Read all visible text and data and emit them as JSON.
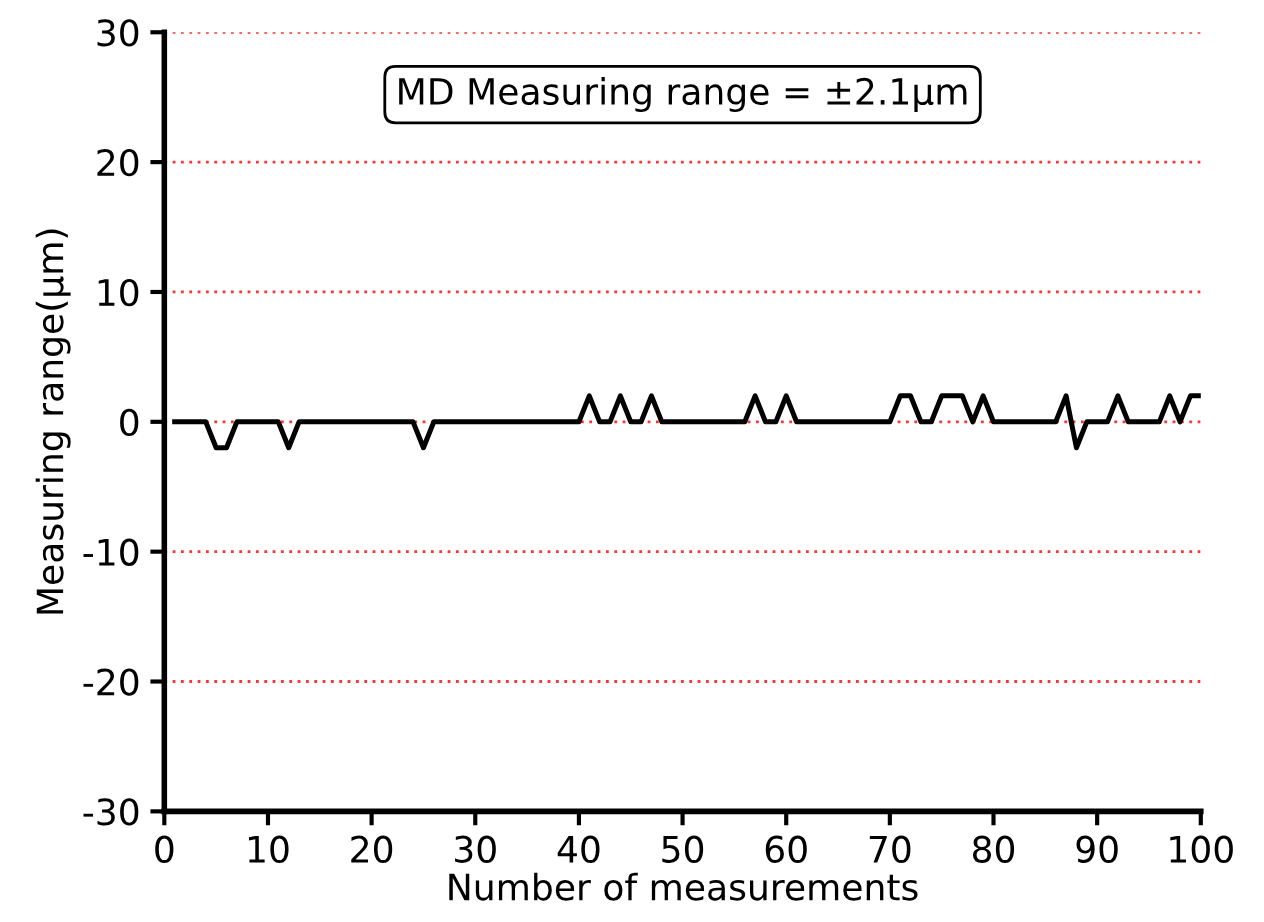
{
  "chart_data": {
    "type": "line",
    "xlabel": "Number of measurements",
    "ylabel": "Measuring range(µm)",
    "annotations": [
      "MD Measuring range = ±2.1µm"
    ],
    "x": [
      1,
      2,
      3,
      4,
      5,
      6,
      7,
      8,
      9,
      10,
      11,
      12,
      13,
      14,
      15,
      16,
      17,
      18,
      19,
      20,
      21,
      22,
      23,
      24,
      25,
      26,
      27,
      28,
      29,
      30,
      31,
      32,
      33,
      34,
      35,
      36,
      37,
      38,
      39,
      40,
      41,
      42,
      43,
      44,
      45,
      46,
      47,
      48,
      49,
      50,
      51,
      52,
      53,
      54,
      55,
      56,
      57,
      58,
      59,
      60,
      61,
      62,
      63,
      64,
      65,
      66,
      67,
      68,
      69,
      70,
      71,
      72,
      73,
      74,
      75,
      76,
      77,
      78,
      79,
      80,
      81,
      82,
      83,
      84,
      85,
      86,
      87,
      88,
      89,
      90,
      91,
      92,
      93,
      94,
      95,
      96,
      97,
      98,
      99,
      100
    ],
    "series": [
      {
        "color": "#000000",
        "values": [
          0,
          0,
          0,
          0,
          -2,
          -2,
          0,
          0,
          0,
          0,
          0,
          -2,
          0,
          0,
          0,
          0,
          0,
          0,
          0,
          0,
          0,
          0,
          0,
          0,
          -2,
          0,
          0,
          0,
          0,
          0,
          0,
          0,
          0,
          0,
          0,
          0,
          0,
          0,
          0,
          0,
          2,
          0,
          0,
          2,
          0,
          0,
          2,
          0,
          0,
          0,
          0,
          0,
          0,
          0,
          0,
          0,
          2,
          0,
          0,
          2,
          0,
          0,
          0,
          0,
          0,
          0,
          0,
          0,
          0,
          0,
          2,
          2,
          0,
          0,
          2,
          2,
          2,
          0,
          2,
          0,
          0,
          0,
          0,
          0,
          0,
          0,
          2,
          -2,
          0,
          0,
          0,
          2,
          0,
          0,
          0,
          0,
          2,
          0,
          2,
          2
        ]
      }
    ],
    "xlim": [
      0,
      100
    ],
    "xticks": [
      0,
      10,
      20,
      30,
      40,
      50,
      60,
      70,
      80,
      90,
      100
    ],
    "ylim": [
      -30,
      30
    ],
    "yticks": [
      -30,
      -20,
      -10,
      0,
      10,
      20,
      30
    ],
    "grid": "y",
    "marker": "none",
    "line_style": "solid",
    "legend": false
  }
}
